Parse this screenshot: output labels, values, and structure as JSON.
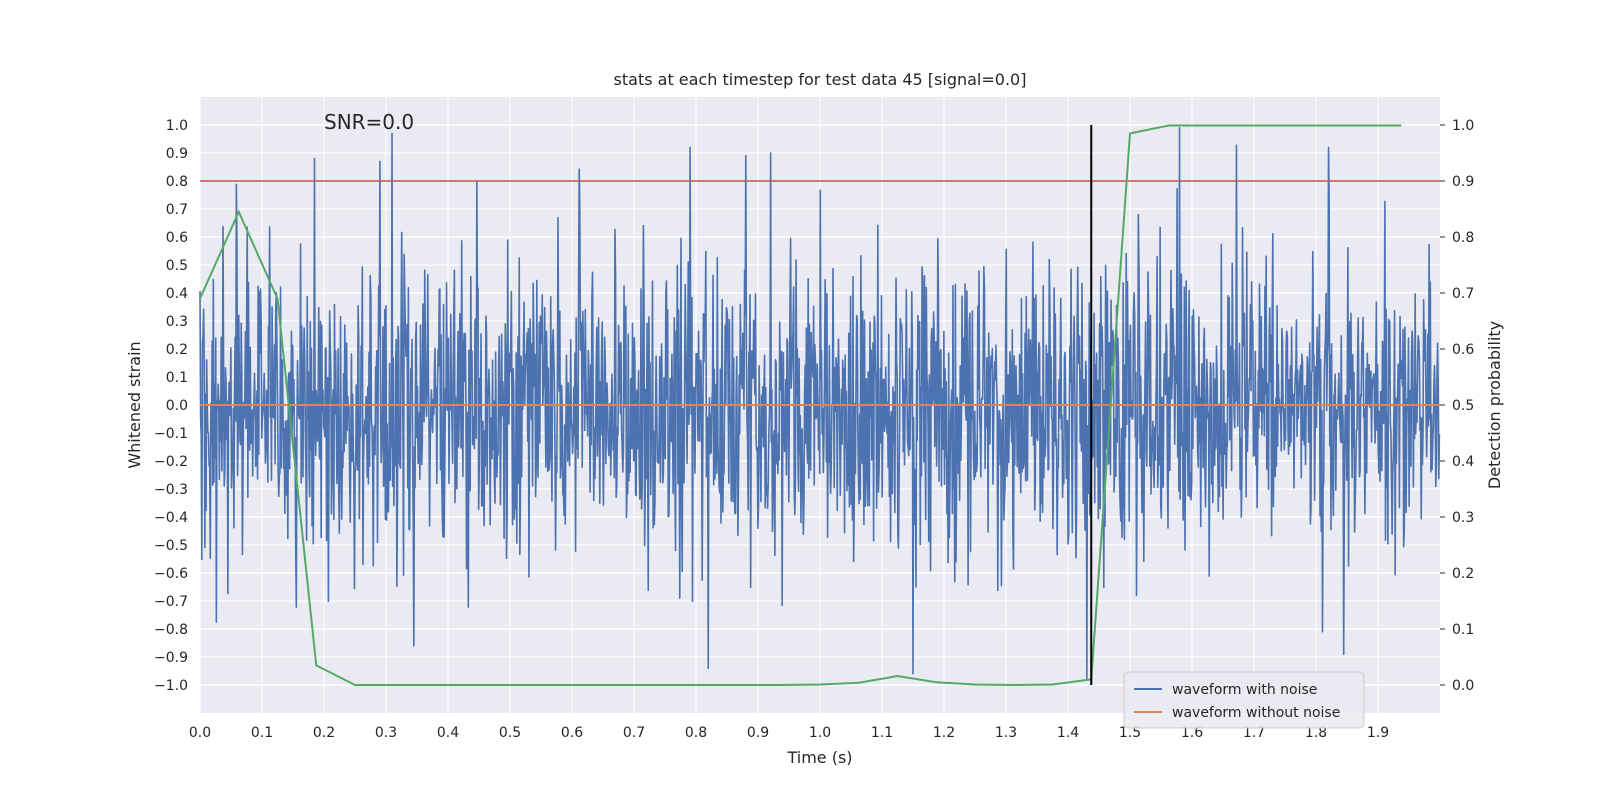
{
  "chart_data": {
    "type": "line",
    "title": "stats at each timestep for test data 45 [signal=0.0]",
    "xlabel": "Time (s)",
    "ylabel": "Whitened strain",
    "y2label": "Detection probability",
    "xlim": [
      0.0,
      2.0
    ],
    "ylim": [
      -1.1,
      1.1
    ],
    "y2lim": [
      -0.05,
      1.05
    ],
    "xticks": [
      0.0,
      0.1,
      0.2,
      0.3,
      0.4,
      0.5,
      0.6,
      0.7,
      0.8,
      0.9,
      1.0,
      1.1,
      1.2,
      1.3,
      1.4,
      1.5,
      1.6,
      1.7,
      1.8,
      1.9
    ],
    "xtick_labels": [
      "0.0",
      "0.1",
      "0.2",
      "0.3",
      "0.4",
      "0.5",
      "0.6",
      "0.7",
      "0.8",
      "0.9",
      "1.0",
      "1.1",
      "1.2",
      "1.3",
      "1.4",
      "1.5",
      "1.6",
      "1.7",
      "1.8",
      "1.9"
    ],
    "yticks": [
      1.0,
      0.9,
      0.8,
      0.7,
      0.6,
      0.5,
      0.4,
      0.3,
      0.2,
      0.1,
      0.0,
      -0.1,
      -0.2,
      -0.3,
      -0.4,
      -0.5,
      -0.6,
      -0.7,
      -0.8,
      -0.9,
      -1.0
    ],
    "ytick_labels": [
      "1.0",
      "0.9",
      "0.8",
      "0.7",
      "0.6",
      "0.5",
      "0.4",
      "0.3",
      "0.2",
      "0.1",
      "0.0",
      "−0.1",
      "−0.2",
      "−0.3",
      "−0.4",
      "−0.5",
      "−0.6",
      "−0.7",
      "−0.8",
      "−0.9",
      "−1.0"
    ],
    "y2ticks": [
      1.0,
      0.9,
      0.8,
      0.7,
      0.6,
      0.5,
      0.4,
      0.3,
      0.2,
      0.1,
      0.0
    ],
    "y2tick_labels": [
      "1.0",
      "0.9",
      "0.8",
      "0.7",
      "0.6",
      "0.5",
      "0.4",
      "0.3",
      "0.2",
      "0.1",
      "0.0"
    ],
    "annotation": "SNR=0.0",
    "annotation_at": {
      "x": 0.2,
      "y": 1.0
    },
    "legend_position": "lower-right",
    "grid": true,
    "colors": {
      "background": "#eaeaf2",
      "grid": "#ffffff",
      "noise": "#4c72b0",
      "clean": "#dd8452",
      "probability": "#55a868",
      "threshold": "#c44e52",
      "marker": "#000000"
    },
    "series": [
      {
        "name": "waveform with noise",
        "axis": "left",
        "description": "whitened noise trace, 2048 samples over 2 s, amplitude roughly within [-1, 1]",
        "x_start": 0.0,
        "x_end": 2.0,
        "n_points": 2048,
        "seed": 45,
        "sigma": 0.26,
        "clip": [
          -0.96,
          0.97
        ],
        "spikes": [
          {
            "x": 0.185,
            "y": 0.88
          },
          {
            "x": 0.29,
            "y": 0.87
          },
          {
            "x": 0.31,
            "y": 0.97
          },
          {
            "x": 0.79,
            "y": 0.92
          },
          {
            "x": 0.88,
            "y": 0.89
          },
          {
            "x": 0.92,
            "y": 0.9
          },
          {
            "x": 1.58,
            "y": 0.99
          },
          {
            "x": 1.82,
            "y": 0.92
          },
          {
            "x": 0.82,
            "y": -0.94
          },
          {
            "x": 1.15,
            "y": -0.96
          },
          {
            "x": 1.43,
            "y": -0.98
          },
          {
            "x": 0.345,
            "y": -0.86
          },
          {
            "x": 1.81,
            "y": -0.81
          }
        ]
      },
      {
        "name": "waveform without noise",
        "axis": "left",
        "x": [
          0.0,
          2.0
        ],
        "y": [
          0.0,
          0.0
        ]
      },
      {
        "name": "detection probability",
        "axis": "right",
        "x": [
          0.0,
          0.0625,
          0.125,
          0.1875,
          0.25,
          0.3125,
          0.375,
          0.4375,
          0.5,
          0.5625,
          0.625,
          0.6875,
          0.75,
          0.8125,
          0.875,
          0.9375,
          1.0,
          1.0625,
          1.125,
          1.1875,
          1.25,
          1.3125,
          1.375,
          1.4375,
          1.5,
          1.5625,
          1.625,
          1.6875,
          1.75,
          1.8125,
          1.875,
          1.9375
        ],
        "y": [
          0.69,
          0.845,
          0.69,
          0.035,
          0.0,
          0.0,
          0.0,
          0.0,
          0.0,
          0.0,
          0.0,
          0.0,
          0.0,
          0.0,
          0.0,
          0.0,
          0.001,
          0.004,
          0.016,
          0.005,
          0.001,
          0.0,
          0.001,
          0.01,
          0.985,
          0.999,
          0.999,
          0.999,
          0.999,
          0.999,
          0.999,
          0.999
        ]
      },
      {
        "name": "detection threshold",
        "axis": "right",
        "x": [
          0.0,
          2.0
        ],
        "y": [
          0.9,
          0.9
        ]
      },
      {
        "name": "detection time marker",
        "axis": "right",
        "x": [
          1.4375,
          1.4375
        ],
        "y": [
          0.0,
          1.0
        ]
      }
    ],
    "legend": [
      {
        "label": "waveform with noise",
        "color_key": "noise"
      },
      {
        "label": "waveform without noise",
        "color_key": "clean"
      }
    ]
  }
}
